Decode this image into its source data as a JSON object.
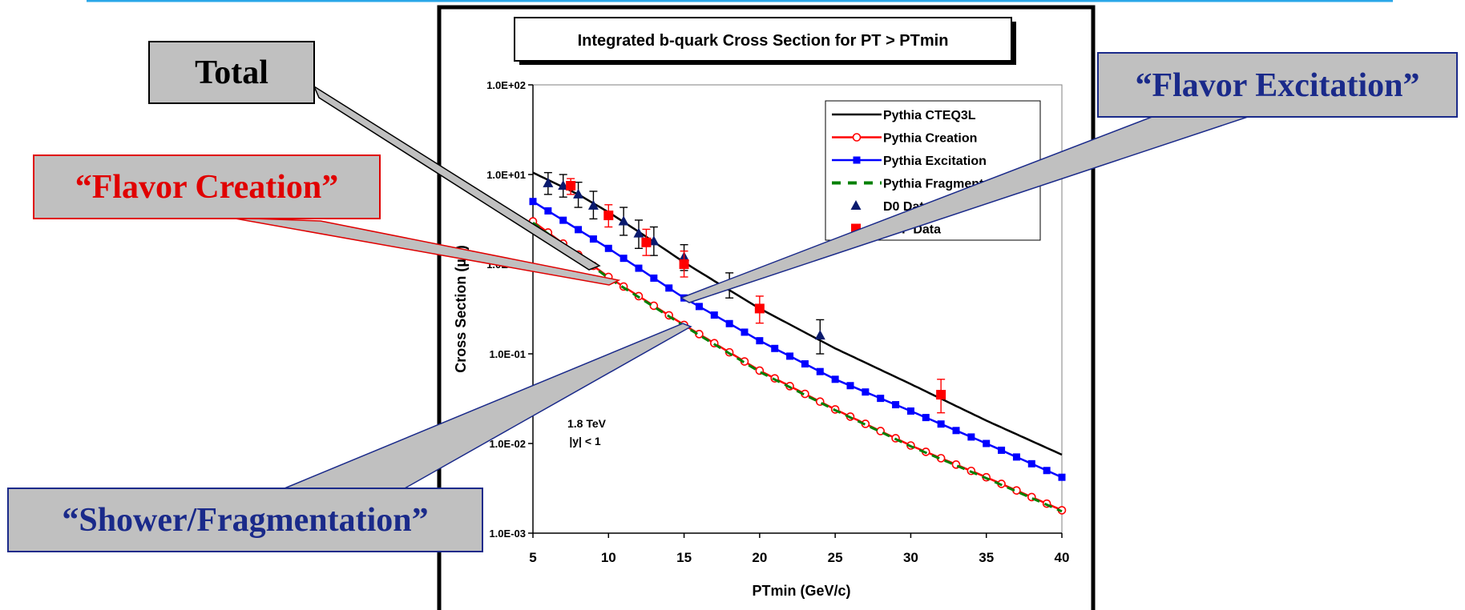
{
  "chart_data": {
    "type": "line",
    "title": "Integrated b-quark Cross Section for PT > PTmin",
    "xlabel": "PTmin  (GeV/c)",
    "ylabel": "Cross Section  (µb)",
    "xlim": [
      5,
      40
    ],
    "ylim": [
      0.001,
      100
    ],
    "yscale": "log",
    "x_ticks": [
      5,
      10,
      15,
      20,
      25,
      30,
      35,
      40
    ],
    "y_ticks": [
      0.001,
      0.01,
      0.1,
      1,
      10,
      100
    ],
    "y_tick_labels": [
      "1.0E-03",
      "1.0E-02",
      "1.0E-01",
      "1.0E+00",
      "1.0E+01",
      "1.0E+02"
    ],
    "grid": false,
    "legend_position": "top-right",
    "annotation": [
      "1.8 TeV",
      "|y| < 1"
    ],
    "series": [
      {
        "name": "Pythia CTEQ3L",
        "color": "#000000",
        "marker": "none",
        "x": [
          5,
          8,
          10,
          12,
          15,
          17,
          20,
          25,
          30,
          35,
          40
        ],
        "y": [
          10.5,
          6.0,
          3.8,
          2.3,
          1.05,
          0.65,
          0.32,
          0.115,
          0.046,
          0.018,
          0.0075
        ]
      },
      {
        "name": "Pythia Creation",
        "color": "#ff0000",
        "marker": "open-circle",
        "x": [
          5,
          10,
          15,
          20,
          25,
          30,
          35,
          40
        ],
        "y": [
          3.0,
          0.72,
          0.21,
          0.065,
          0.024,
          0.0095,
          0.0042,
          0.0018
        ]
      },
      {
        "name": "Pythia Excitation",
        "color": "#0000ff",
        "marker": "filled-square",
        "x": [
          5,
          10,
          15,
          20,
          25,
          30,
          35,
          40
        ],
        "y": [
          5.0,
          1.5,
          0.42,
          0.14,
          0.052,
          0.023,
          0.01,
          0.0042
        ]
      },
      {
        "name": "Pythia Fragmentation",
        "color": "#008000",
        "marker": "none",
        "dash": "dashed",
        "x": [
          5,
          10,
          15,
          20,
          25,
          30,
          35,
          40
        ],
        "y": [
          2.9,
          0.7,
          0.205,
          0.063,
          0.0235,
          0.0093,
          0.0041,
          0.00175
        ]
      },
      {
        "name": "D0 Data",
        "color": "#0a1a6e",
        "marker": "filled-triangle",
        "x": [
          6,
          7,
          8,
          9,
          11,
          12,
          13,
          15,
          18,
          24
        ],
        "y": [
          8.0,
          7.5,
          6.0,
          4.5,
          3.0,
          2.2,
          1.8,
          1.2,
          0.6,
          0.16
        ],
        "err": [
          [
            6.0,
            10.5
          ],
          [
            5.6,
            10.0
          ],
          [
            4.3,
            8.2
          ],
          [
            3.2,
            6.5
          ],
          [
            2.1,
            4.3
          ],
          [
            1.5,
            3.1
          ],
          [
            1.25,
            2.6
          ],
          [
            0.85,
            1.65
          ],
          [
            0.42,
            0.8
          ],
          [
            0.1,
            0.24
          ]
        ]
      },
      {
        "name": "CDF Data",
        "color": "#ff0000",
        "marker": "filled-square",
        "x": [
          7.5,
          10,
          12.5,
          15,
          20,
          32
        ],
        "y": [
          7.5,
          3.5,
          1.75,
          1.0,
          0.32,
          0.035
        ],
        "err": [
          [
            6.0,
            9.0
          ],
          [
            2.6,
            4.6
          ],
          [
            1.25,
            2.45
          ],
          [
            0.72,
            1.4
          ],
          [
            0.22,
            0.44
          ],
          [
            0.022,
            0.052
          ]
        ]
      }
    ]
  },
  "callouts": {
    "total": "Total",
    "flavor_creation": "“Flavor Creation”",
    "flavor_excitation": "“Flavor Excitation”",
    "shower_fragmentation": "“Shower/Fragmentation”"
  },
  "colors": {
    "callout_gray": "#c0c0c0",
    "creation_text": "#e00000",
    "excitation_text": "#1a2a8a",
    "header_line": "#2aa7e8"
  }
}
